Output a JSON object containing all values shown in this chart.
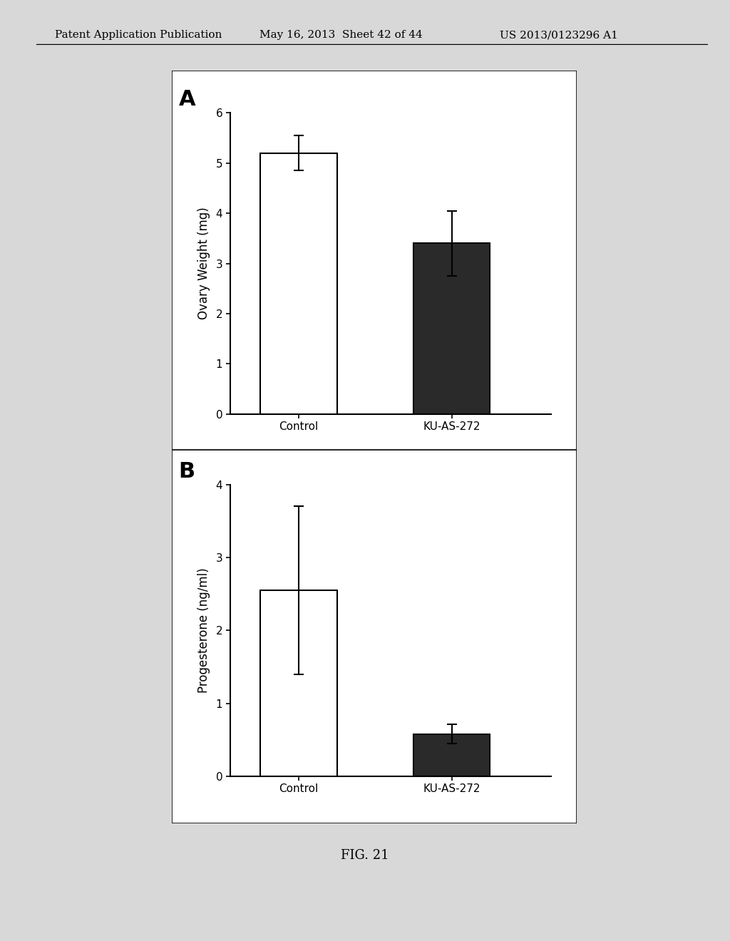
{
  "panel_A": {
    "label": "A",
    "categories": [
      "Control",
      "KU-AS-272"
    ],
    "values": [
      5.2,
      3.4
    ],
    "errors": [
      0.35,
      0.65
    ],
    "bar_colors": [
      "white",
      "#2a2a2a"
    ],
    "bar_edgecolors": [
      "black",
      "black"
    ],
    "ylabel": "Ovary Weight (mg)",
    "ylim": [
      0,
      6
    ],
    "yticks": [
      0,
      1,
      2,
      3,
      4,
      5,
      6
    ]
  },
  "panel_B": {
    "label": "B",
    "categories": [
      "Control",
      "KU-AS-272"
    ],
    "values": [
      2.55,
      0.58
    ],
    "errors": [
      1.15,
      0.13
    ],
    "bar_colors": [
      "white",
      "#2a2a2a"
    ],
    "bar_edgecolors": [
      "black",
      "black"
    ],
    "ylabel": "Progesterone (ng/ml)",
    "ylim": [
      0,
      4
    ],
    "yticks": [
      0,
      1,
      2,
      3,
      4
    ]
  },
  "fig_label": "FIG. 21",
  "header_left": "Patent Application Publication",
  "header_mid": "May 16, 2013  Sheet 42 of 44",
  "header_right": "US 2013/0123296 A1",
  "page_bg_color": "#d8d8d8",
  "chart_bg_color": "#ffffff",
  "bar_width": 0.5,
  "tick_fontsize": 11,
  "axis_label_fontsize": 12,
  "panel_label_fontsize": 22,
  "header_fontsize": 11,
  "fig_label_fontsize": 13
}
